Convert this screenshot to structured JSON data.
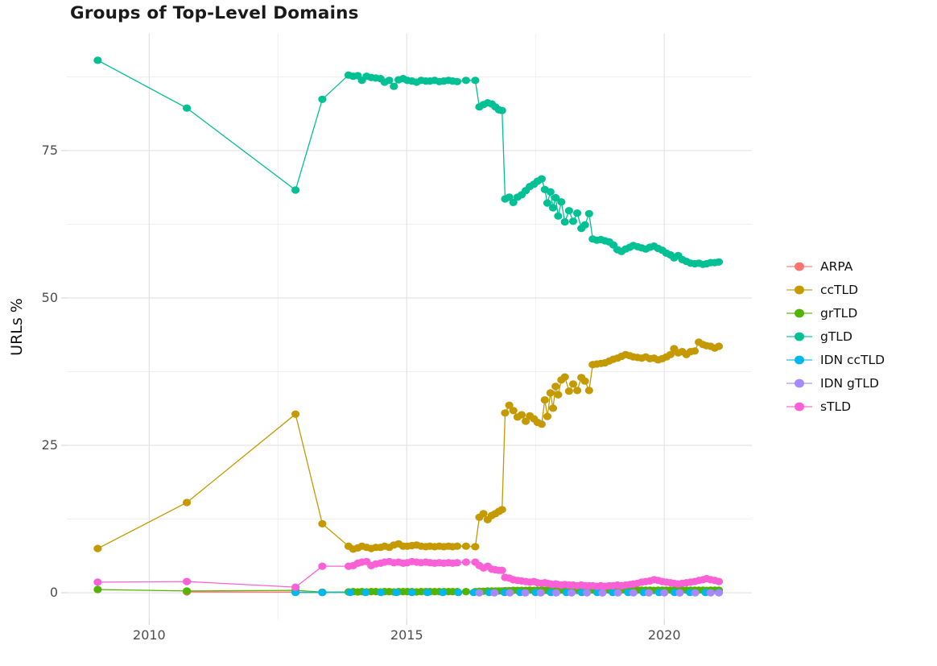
{
  "chart_data": {
    "type": "line",
    "title": "Groups of Top-Level Domains",
    "xlabel": "",
    "ylabel": "URLs %",
    "legend_position": "right",
    "grid": true,
    "background": "#ffffff",
    "major_grid_color": "#e3e3e3",
    "minor_grid_color": "#f0f0f0",
    "tick_color": "#d9d9d9",
    "tick_label_color": "#4d4d4d",
    "xlim": [
      2008.4,
      2021.7
    ],
    "ylim": [
      -4.5,
      94.8
    ],
    "x_ticks": [
      {
        "value": 2010,
        "label": "2010"
      },
      {
        "value": 2015,
        "label": "2015"
      },
      {
        "value": 2020,
        "label": "2020"
      }
    ],
    "y_ticks": [
      {
        "value": 0,
        "label": "0"
      },
      {
        "value": 25,
        "label": "25"
      },
      {
        "value": 50,
        "label": "50"
      },
      {
        "value": 75,
        "label": "75"
      }
    ],
    "x_minor": [
      2012.5,
      2017.5
    ],
    "y_minor": [
      12.5,
      37.5,
      62.5,
      87.5
    ],
    "x_main": [
      2009.0,
      2010.73,
      2012.84,
      2013.36,
      2013.87,
      2013.96,
      2014.05,
      2014.13,
      2014.22,
      2014.31,
      2014.4,
      2014.49,
      2014.57,
      2014.66,
      2014.75,
      2014.84,
      2014.93,
      2015.01,
      2015.1,
      2015.19,
      2015.28,
      2015.37,
      2015.45,
      2015.54,
      2015.63,
      2015.72,
      2015.81,
      2015.89,
      2015.98,
      2016.15,
      2016.33,
      2016.41,
      2016.49,
      2016.57,
      2016.65,
      2016.72,
      2016.79,
      2016.85,
      2016.91,
      2016.99,
      2017.07,
      2017.15,
      2017.23,
      2017.31,
      2017.39,
      2017.47,
      2017.54,
      2017.62,
      2017.68,
      2017.73,
      2017.79,
      2017.84,
      2017.89,
      2017.94,
      2018.0,
      2018.07,
      2018.15,
      2018.23,
      2018.31,
      2018.39,
      2018.46,
      2018.54,
      2018.61,
      2018.69,
      2018.77,
      2018.85,
      2018.93,
      2019.01,
      2019.09,
      2019.17,
      2019.25,
      2019.33,
      2019.4,
      2019.48,
      2019.56,
      2019.64,
      2019.72,
      2019.8,
      2019.88,
      2019.96,
      2020.04,
      2020.12,
      2020.19,
      2020.27,
      2020.35,
      2020.43,
      2020.51,
      2020.59,
      2020.67,
      2020.75,
      2020.82,
      2020.9,
      2020.98,
      2021.06
    ],
    "series": [
      {
        "name": "ARPA",
        "color": "#F8766D",
        "x": [
          2010.73,
          2012.84,
          2013.36
        ],
        "y": [
          0.15,
          0.1,
          0.05
        ]
      },
      {
        "name": "ccTLD",
        "color": "#C49A00",
        "x": "main",
        "y": [
          7.5,
          15.3,
          30.3,
          11.7,
          7.9,
          7.4,
          7.6,
          7.9,
          7.7,
          7.5,
          7.7,
          7.7,
          7.9,
          7.7,
          8.1,
          8.3,
          7.9,
          7.9,
          8.0,
          8.1,
          7.9,
          7.8,
          7.9,
          7.8,
          7.9,
          7.8,
          7.9,
          7.8,
          7.9,
          7.9,
          7.8,
          12.8,
          13.4,
          12.4,
          13.1,
          13.4,
          13.8,
          14.1,
          30.5,
          31.8,
          30.9,
          29.8,
          30.2,
          29.1,
          30.0,
          29.5,
          28.9,
          28.6,
          32.7,
          29.9,
          33.9,
          31.3,
          35.0,
          33.6,
          36.1,
          36.6,
          34.2,
          35.4,
          34.3,
          36.5,
          35.9,
          34.3,
          38.7,
          38.8,
          38.9,
          39.0,
          39.3,
          39.6,
          39.8,
          40.1,
          40.4,
          40.2,
          40.0,
          39.9,
          39.8,
          40.0,
          39.7,
          39.8,
          39.5,
          39.7,
          40.0,
          40.4,
          41.4,
          40.7,
          40.9,
          40.4,
          40.9,
          41.0,
          42.5,
          42.1,
          41.9,
          41.8,
          41.5,
          41.8
        ]
      },
      {
        "name": "grTLD",
        "color": "#53B400",
        "x": "main",
        "y": [
          0.55,
          0.3,
          0.4,
          0.1,
          0.15,
          0.2,
          0.15,
          0.2,
          0.15,
          0.2,
          0.2,
          0.15,
          0.2,
          0.2,
          0.15,
          0.2,
          0.2,
          0.2,
          0.2,
          0.15,
          0.2,
          0.2,
          0.2,
          0.2,
          0.2,
          0.2,
          0.2,
          0.2,
          0.2,
          0.2,
          0.2,
          0.25,
          0.25,
          0.3,
          0.3,
          0.3,
          0.3,
          0.3,
          0.35,
          0.35,
          0.4,
          0.4,
          0.4,
          0.4,
          0.45,
          0.4,
          0.45,
          0.45,
          0.4,
          0.4,
          0.45,
          0.4,
          0.45,
          0.4,
          0.45,
          0.45,
          0.4,
          0.45,
          0.4,
          0.45,
          0.45,
          0.4,
          0.45,
          0.4,
          0.45,
          0.45,
          0.45,
          0.45,
          0.4,
          0.45,
          0.45,
          0.45,
          0.4,
          0.45,
          0.45,
          0.45,
          0.45,
          0.4,
          0.45,
          0.45,
          0.45,
          0.45,
          0.45,
          0.4,
          0.45,
          0.45,
          0.45,
          0.45,
          0.45,
          0.45,
          0.4,
          0.45,
          0.45,
          0.45
        ]
      },
      {
        "name": "gTLD",
        "color": "#00C094",
        "x": "main",
        "y": [
          90.3,
          82.2,
          68.3,
          83.7,
          87.8,
          87.6,
          87.7,
          86.9,
          87.6,
          87.4,
          87.3,
          87.2,
          86.6,
          86.9,
          85.9,
          87.0,
          87.2,
          86.9,
          86.8,
          86.6,
          86.9,
          86.8,
          86.8,
          86.9,
          86.7,
          86.8,
          86.9,
          86.8,
          86.7,
          86.9,
          86.9,
          82.4,
          82.8,
          83.1,
          82.9,
          82.4,
          81.9,
          81.8,
          66.8,
          67.1,
          66.2,
          67.1,
          67.5,
          68.2,
          68.9,
          69.3,
          69.8,
          70.2,
          68.4,
          66.1,
          68.0,
          65.3,
          67.0,
          63.9,
          66.3,
          62.9,
          64.8,
          63.0,
          64.4,
          61.8,
          62.4,
          64.3,
          60.0,
          59.8,
          59.9,
          59.7,
          59.5,
          59.0,
          58.2,
          57.9,
          58.3,
          58.6,
          58.9,
          58.7,
          58.5,
          58.3,
          58.6,
          58.8,
          58.4,
          58.1,
          57.6,
          57.3,
          56.8,
          57.2,
          56.5,
          56.2,
          55.9,
          55.8,
          55.9,
          55.7,
          55.8,
          56.0,
          56.0,
          56.1
        ]
      },
      {
        "name": "IDN ccTLD",
        "color": "#00B6EB",
        "x": [
          2012.84,
          2013.36,
          2013.9,
          2014.2,
          2014.5,
          2014.8,
          2015.1,
          2015.4,
          2015.7,
          2016.0,
          2016.3,
          2016.6,
          2016.9,
          2017.2,
          2017.5,
          2017.8,
          2018.1,
          2018.4,
          2018.7,
          2019.0,
          2019.3,
          2019.6,
          2019.9,
          2020.2,
          2020.5,
          2020.8,
          2021.06
        ],
        "y": [
          0.05,
          0.05,
          0.05,
          0.05,
          0.05,
          0.05,
          0.05,
          0.05,
          0.05,
          0.05,
          0.05,
          0.05,
          0.05,
          0.05,
          0.05,
          0.05,
          0.05,
          0.05,
          0.05,
          0.05,
          0.05,
          0.05,
          0.05,
          0.05,
          0.05,
          0.05,
          0.05
        ]
      },
      {
        "name": "IDN gTLD",
        "color": "#A58AFF",
        "x": [
          2016.41,
          2016.7,
          2017.0,
          2017.3,
          2017.6,
          2017.9,
          2018.2,
          2018.5,
          2018.8,
          2019.1,
          2019.4,
          2019.7,
          2020.0,
          2020.3,
          2020.6,
          2020.9,
          2021.06
        ],
        "y": [
          0.0,
          0.0,
          0.0,
          0.0,
          0.0,
          0.0,
          0.0,
          0.0,
          0.0,
          0.0,
          0.0,
          0.0,
          0.0,
          0.0,
          0.0,
          0.0,
          0.0
        ]
      },
      {
        "name": "sTLD",
        "color": "#FB61D7",
        "x": "main",
        "y": [
          1.8,
          1.9,
          0.95,
          4.5,
          4.5,
          4.6,
          5.0,
          5.2,
          5.3,
          4.6,
          4.9,
          5.0,
          5.2,
          5.3,
          5.1,
          5.2,
          5.0,
          5.1,
          5.3,
          5.2,
          5.1,
          5.2,
          5.1,
          5.0,
          5.1,
          5.0,
          5.1,
          5.0,
          5.1,
          5.2,
          5.2,
          4.6,
          4.2,
          4.5,
          4.0,
          3.9,
          3.8,
          3.8,
          2.6,
          2.5,
          2.2,
          2.1,
          2.0,
          1.9,
          1.8,
          1.9,
          1.7,
          1.6,
          1.7,
          1.6,
          1.5,
          1.4,
          1.5,
          1.4,
          1.3,
          1.4,
          1.3,
          1.3,
          1.2,
          1.3,
          1.2,
          1.2,
          1.2,
          1.1,
          1.2,
          1.1,
          1.2,
          1.2,
          1.3,
          1.2,
          1.3,
          1.4,
          1.5,
          1.6,
          1.8,
          1.9,
          2.0,
          2.2,
          2.1,
          1.9,
          1.8,
          1.7,
          1.6,
          1.5,
          1.6,
          1.7,
          1.8,
          1.9,
          2.1,
          2.2,
          2.4,
          2.2,
          2.1,
          1.9
        ]
      }
    ]
  }
}
